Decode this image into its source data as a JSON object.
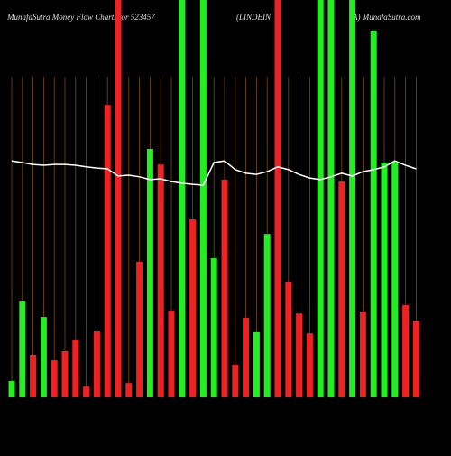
{
  "chart_data": {
    "type": "bar",
    "title": [
      "MunafaSutra  Money  Flow  Charts for 523457",
      "(LINDEIN",
      "IA) MunafaSutra.com"
    ],
    "categories": [
      null,
      null,
      null,
      null,
      null,
      null,
      null,
      null,
      null,
      null,
      null,
      null,
      null,
      null,
      null,
      null,
      null,
      null,
      null,
      null,
      null,
      null,
      null,
      null,
      null,
      null,
      null,
      null,
      null,
      null,
      null,
      null,
      null,
      null,
      null,
      null,
      null,
      null,
      null
    ],
    "values": [
      4.1,
      24.3,
      10.7,
      20.2,
      9.3,
      11.6,
      14.5,
      2.7,
      16.6,
      73.6,
      100,
      3.6,
      34.1,
      62.5,
      58.6,
      21.8,
      100,
      44.8,
      100,
      35,
      54.8,
      8.2,
      20,
      16.4,
      41.1,
      100,
      29.1,
      21.1,
      16.1,
      100,
      100,
      54.3,
      100,
      21.6,
      92.3,
      59.1,
      59.1,
      23.2,
      19.3
    ],
    "bar_colors": [
      "#22ee22",
      "#22ee22",
      "#ee2222",
      "#22ee22",
      "#ee2222",
      "#ee2222",
      "#ee2222",
      "#ee2222",
      "#ee2222",
      "#ee2222",
      "#ee2222",
      "#ee2222",
      "#ee2222",
      "#22ee22",
      "#ee2222",
      "#ee2222",
      "#22ee22",
      "#ee2222",
      "#22ee22",
      "#22ee22",
      "#ee2222",
      "#ee2222",
      "#ee2222",
      "#22ee22",
      "#22ee22",
      "#ee2222",
      "#ee2222",
      "#ee2222",
      "#ee2222",
      "#22ee22",
      "#22ee22",
      "#ee2222",
      "#22ee22",
      "#ee2222",
      "#22ee22",
      "#22ee22",
      "#22ee22",
      "#ee2222",
      "#ee2222"
    ],
    "line": {
      "color": "#ffffff",
      "values": [
        59.5,
        59.1,
        58.6,
        58.4,
        58.6,
        58.6,
        58.4,
        58,
        57.7,
        57.5,
        55.7,
        55.9,
        55.5,
        54.8,
        55,
        54.3,
        53.9,
        53.6,
        53.4,
        59.1,
        59.5,
        57.3,
        56.4,
        56.1,
        56.8,
        58,
        57.3,
        56.1,
        55.2,
        54.8,
        55.5,
        56.4,
        55.7,
        56.8,
        57.3,
        58,
        59.5,
        58.4,
        57.5
      ]
    },
    "ylim": [
      0,
      100
    ],
    "background": "#000000",
    "grid_color": "#7a4a10"
  }
}
